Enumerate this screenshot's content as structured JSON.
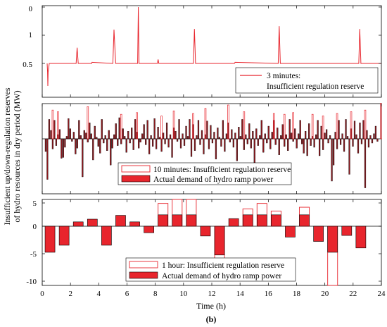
{
  "figure": {
    "ylabel_line1": "Insufficient up/down-regulation reserves",
    "ylabel_line2": "of hydro resources in dry period (MW)",
    "xlabel": "Time (h)",
    "caption": "(b)"
  },
  "colors": {
    "red": "#e8252d",
    "dark_red": "#8b1a1f",
    "outline": "#e8252d"
  },
  "chart_data": [
    {
      "type": "line",
      "panel": "top",
      "legend": [
        "3 minutes:",
        "Insufficient regulation reserve"
      ],
      "ytick_labels": [
        "0.5",
        "1",
        "0"
      ],
      "ylim": [
        0.05,
        2.2
      ],
      "baseline": 0.5,
      "xlim": [
        0,
        24
      ],
      "series": [
        {
          "name": "3 minutes: Insufficient regulation reserve",
          "x": [
            0.35,
            0.38,
            0.4,
            0.42,
            0.5,
            2.4,
            2.47,
            2.55,
            3.5,
            3.52,
            5.0,
            5.08,
            5.2,
            6.75,
            6.8,
            6.85,
            8.15,
            8.2,
            8.25,
            10.7,
            10.77,
            10.85,
            13.6,
            13.65,
            16.7,
            16.77,
            16.85,
            22.4,
            22.47,
            22.55,
            24.0
          ],
          "y": [
            0.5,
            0.35,
            0.1,
            0.35,
            0.5,
            0.5,
            0.78,
            0.5,
            0.5,
            0.52,
            0.5,
            1.2,
            0.5,
            0.5,
            2.0,
            0.5,
            0.5,
            0.57,
            0.5,
            0.5,
            1.22,
            0.5,
            0.5,
            0.52,
            0.5,
            1.32,
            0.5,
            0.5,
            1.22,
            0.5,
            0.5
          ]
        }
      ]
    },
    {
      "type": "bar",
      "panel": "middle",
      "legend": [
        "10 minutes: Insufficient regulation reserve",
        "Actual demand of hydro ramp power"
      ],
      "ylim": [
        -6.2,
        4.0
      ],
      "xlim": [
        0,
        24
      ],
      "bin_hours": 0.1667,
      "reserve_outline_values": [
        3.4,
        3.2,
        3.8,
        2.9,
        3.1,
        2.7,
        3.3,
        3.0,
        3.6,
        4.0,
        3.2,
        3.0,
        2.9,
        3.1,
        2.9,
        2.7,
        3.0,
        3.2,
        3.4,
        4.2
      ],
      "values": [
        -1.5,
        -4.8,
        2.3,
        1.0,
        -1.2,
        2.2,
        -0.8,
        0.5,
        1.1,
        -2.3,
        -2.2,
        -1.0,
        0.3,
        2.4,
        1.2,
        -0.3,
        0.8,
        -1.8,
        -1.1,
        2.2,
        0.4,
        -4.5,
        1.0,
        0.7,
        -0.4,
        1.9,
        0.6,
        -2.5,
        1.5,
        0.2,
        -0.9,
        -1.7,
        2.3,
        -0.5,
        0.4,
        -1.4,
        1.0,
        -3.1,
        -1.1,
        0.5,
        1.8,
        -0.8,
        2.5,
        -0.6,
        1.2,
        0.3,
        -1.6,
        0.9,
        -0.5,
        1.3,
        -1.3,
        2.3,
        0.8,
        -1.1,
        -0.4,
        0.6,
        1.7,
        -0.7,
        2.2,
        -1.8,
        0.4,
        -0.9,
        2.4,
        -1.2,
        1.4,
        0.2,
        -1.5,
        0.7,
        -0.6,
        1.9,
        -1.0,
        0.5,
        -2.2,
        1.3,
        0.9,
        -0.3,
        2.3,
        -1.1,
        0.6,
        -0.8,
        1.5,
        0.3,
        2.3,
        -2.1,
        1.7,
        -1.4,
        0.4,
        2.2,
        -0.7,
        1.0,
        -1.8,
        0.5,
        2.1,
        -1.2,
        1.6,
        -0.5,
        0.8,
        -2.4,
        1.3,
        0.2,
        -0.9,
        2.2,
        -1.5,
        0.6,
        1.9,
        -0.4,
        1.1,
        -1.0,
        0.7,
        -2.6,
        1.4,
        0.3,
        2.3,
        -1.3,
        0.5,
        -0.6,
        1.8,
        -1.1,
        0.9,
        -3.2,
        1.2,
        -0.8,
        0.4,
        2.2,
        -1.6,
        0.6,
        -0.5,
        1.5,
        -1.2,
        0.8,
        2.2,
        -0.7,
        1.3,
        -1.9,
        0.4,
        1.7,
        -0.9,
        0.5,
        -1.4,
        2.3,
        0.7,
        -0.3,
        1.2,
        -1.1,
        0.6,
        2.2,
        -0.6,
        -1.7,
        0.9,
        -2.0,
        1.8,
        -0.8,
        0.3,
        -1.0,
        0.5,
        2.2,
        -2.0,
        1.5,
        -1.3,
        0.7,
        1.1,
        -0.5,
        0.4,
        -5.0,
        -3.1,
        0.8,
        -1.2,
        2.2,
        -0.7,
        0.6,
        -1.5,
        2.3,
        0.3,
        -4.2,
        1.2,
        -0.9,
        2.1,
        0.5,
        -1.7,
        1.9,
        -0.6,
        2.2,
        -5.8,
        1.0,
        -1.0,
        0.4,
        -0.5,
        0.6,
        1.5,
        -0.3
      ]
    },
    {
      "type": "bar",
      "panel": "bottom",
      "legend": [
        "1 hour: Insufficient regulation reserve",
        "Actual demand of hydro ramp power"
      ],
      "ytick_labels": [
        "-10",
        "-5",
        "0",
        "5"
      ],
      "ylim": [
        -11,
        6
      ],
      "xlim": [
        0,
        24
      ],
      "xtick_labels": [
        "0",
        "2",
        "4",
        "6",
        "8",
        "10",
        "12",
        "14",
        "16",
        "18",
        "20",
        "22",
        "24"
      ],
      "hours": [
        0,
        1,
        2,
        3,
        4,
        5,
        6,
        7,
        8,
        9,
        10,
        11,
        12,
        13,
        14,
        15,
        16,
        17,
        18,
        19,
        20,
        21,
        22,
        23
      ],
      "values": [
        -4.8,
        -3.5,
        0.8,
        1.3,
        -3.5,
        2.0,
        0.8,
        -1.2,
        2.1,
        2.1,
        2.1,
        -1.8,
        -5.3,
        1.4,
        2.1,
        2.1,
        2.1,
        -2.0,
        2.1,
        -2.8,
        -4.8,
        -1.7,
        -4.0,
        0.0
      ],
      "reserve_outline_values": [
        0,
        0,
        0,
        0,
        0,
        0,
        0,
        0,
        4.2,
        6.0,
        5.0,
        0,
        -6.0,
        0,
        3.2,
        4.2,
        2.8,
        0,
        3.5,
        0,
        -11.0,
        0,
        0,
        0
      ]
    }
  ]
}
